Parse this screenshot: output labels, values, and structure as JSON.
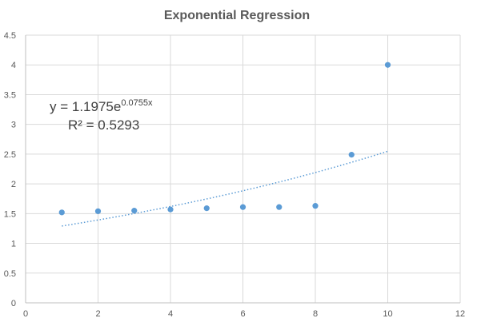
{
  "chart_data": {
    "type": "scatter",
    "title": "Exponential Regression",
    "xlabel": "",
    "ylabel": "",
    "xlim": [
      0,
      12
    ],
    "ylim": [
      0,
      4.5
    ],
    "x_ticks": [
      0,
      2,
      4,
      6,
      8,
      10,
      12
    ],
    "y_ticks": [
      0,
      0.5,
      1,
      1.5,
      2,
      2.5,
      3,
      3.5,
      4,
      4.5
    ],
    "x_tick_labels": [
      "0",
      "2",
      "4",
      "6",
      "8",
      "10",
      "12"
    ],
    "y_tick_labels": [
      "0",
      "0.5",
      "1",
      "1.5",
      "2",
      "2.5",
      "3",
      "3.5",
      "4",
      "4.5"
    ],
    "grid": true,
    "legend": "none",
    "series": [
      {
        "x": [
          1,
          2,
          3,
          4,
          5,
          6,
          7,
          8,
          9,
          10
        ],
        "y": [
          1.52,
          1.54,
          1.55,
          1.57,
          1.59,
          1.61,
          1.61,
          1.63,
          2.49,
          4.0
        ],
        "color": "#5b9bd5"
      }
    ],
    "trendline": {
      "kind": "exponential",
      "a": 1.1975,
      "b": 0.0755,
      "x_range": [
        1,
        10
      ],
      "style": "dotted",
      "color": "#5b9bd5"
    },
    "annotation": {
      "equation_base": "y = 1.1975e",
      "equation_exp": "0.0755x",
      "r2_text": "R² = 0.5293"
    }
  }
}
